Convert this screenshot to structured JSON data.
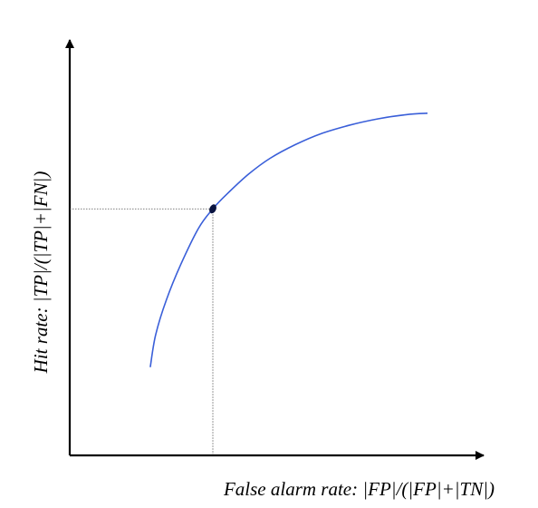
{
  "chart_data": {
    "type": "line",
    "title": "",
    "xlabel": "False alarm rate: |FP|/(|FP|+|TN|)",
    "ylabel": "Hit rate: |TP|/(|TP|+|FN|)",
    "xlim": [
      0,
      1
    ],
    "ylim": [
      0,
      1
    ],
    "grid": false,
    "legend": "none",
    "ticks": "none",
    "series": [
      {
        "color": "#3a5fd9",
        "x": [
          0.225,
          0.24,
          0.27,
          0.31,
          0.36,
          0.4,
          0.44,
          0.5,
          0.56,
          0.63,
          0.7,
          0.78,
          0.86,
          0.94,
          1.0
        ],
        "y": [
          0.246,
          0.336,
          0.434,
          0.532,
          0.634,
          0.688,
          0.73,
          0.785,
          0.829,
          0.867,
          0.897,
          0.921,
          0.939,
          0.951,
          0.955
        ]
      }
    ],
    "marked_point": {
      "x": 0.4,
      "y": 0.688,
      "color": "#0a1440",
      "guide_line_color": "#555555"
    }
  }
}
